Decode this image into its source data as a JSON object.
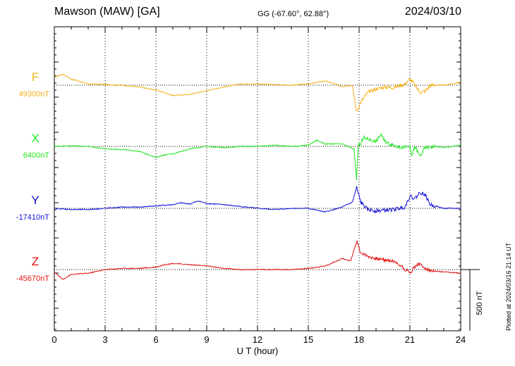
{
  "header": {
    "title": "Mawson (MAW)  [GA]",
    "coords": "GG (-67.60°,  62.88°)",
    "date": "2024/03/10"
  },
  "footer": {
    "plotted": "Plotted at 2024/03/16 21:14 UT"
  },
  "chart_data": {
    "type": "line",
    "xlabel": "U T (hour)",
    "xlim": [
      0,
      24
    ],
    "xticks": [
      0,
      3,
      6,
      9,
      12,
      15,
      18,
      21,
      24
    ],
    "grid": true,
    "scale_bar": {
      "label": "500 nT",
      "value": 500
    },
    "series": [
      {
        "name": "F",
        "baseline_label": "49300nT",
        "baseline": 49300,
        "color": "#f5b01a",
        "points": [
          [
            0,
            49365
          ],
          [
            0.5,
            49390
          ],
          [
            1,
            49350
          ],
          [
            1.5,
            49330
          ],
          [
            2,
            49310
          ],
          [
            3,
            49305
          ],
          [
            4,
            49300
          ],
          [
            5,
            49285
          ],
          [
            6,
            49260
          ],
          [
            6.5,
            49240
          ],
          [
            7,
            49215
          ],
          [
            8,
            49225
          ],
          [
            9,
            49255
          ],
          [
            10,
            49285
          ],
          [
            11,
            49310
          ],
          [
            12,
            49310
          ],
          [
            13,
            49305
          ],
          [
            14,
            49300
          ],
          [
            15,
            49310
          ],
          [
            16,
            49335
          ],
          [
            17,
            49290
          ],
          [
            17.6,
            49300
          ],
          [
            17.85,
            49080
          ],
          [
            18.1,
            49160
          ],
          [
            18.5,
            49240
          ],
          [
            19,
            49270
          ],
          [
            19.5,
            49285
          ],
          [
            20,
            49280
          ],
          [
            20.7,
            49310
          ],
          [
            21,
            49350
          ],
          [
            21.2,
            49320
          ],
          [
            21.6,
            49240
          ],
          [
            21.9,
            49250
          ],
          [
            22.2,
            49300
          ],
          [
            23,
            49300
          ],
          [
            24,
            49325
          ]
        ]
      },
      {
        "name": "X",
        "baseline_label": "6400nT",
        "baseline": 6400,
        "color": "#1fe51f",
        "points": [
          [
            0,
            6400
          ],
          [
            1,
            6405
          ],
          [
            2,
            6400
          ],
          [
            3,
            6380
          ],
          [
            4,
            6375
          ],
          [
            5,
            6360
          ],
          [
            6,
            6310
          ],
          [
            6.5,
            6330
          ],
          [
            7,
            6340
          ],
          [
            8,
            6380
          ],
          [
            9,
            6400
          ],
          [
            10,
            6390
          ],
          [
            11,
            6400
          ],
          [
            12,
            6400
          ],
          [
            13,
            6410
          ],
          [
            14,
            6400
          ],
          [
            15,
            6410
          ],
          [
            15.5,
            6450
          ],
          [
            16,
            6420
          ],
          [
            17,
            6420
          ],
          [
            17.7,
            6380
          ],
          [
            17.85,
            6130
          ],
          [
            17.95,
            6400
          ],
          [
            18.3,
            6470
          ],
          [
            19,
            6440
          ],
          [
            19.3,
            6500
          ],
          [
            19.5,
            6440
          ],
          [
            20,
            6410
          ],
          [
            20.5,
            6390
          ],
          [
            21,
            6400
          ],
          [
            21.1,
            6320
          ],
          [
            21.3,
            6400
          ],
          [
            21.6,
            6320
          ],
          [
            21.9,
            6390
          ],
          [
            22.5,
            6400
          ],
          [
            23,
            6390
          ],
          [
            24,
            6410
          ]
        ]
      },
      {
        "name": "Y",
        "baseline_label": "-17410nT",
        "baseline": -17410,
        "color": "#1010d8",
        "points": [
          [
            0,
            -17410
          ],
          [
            1,
            -17420
          ],
          [
            2,
            -17420
          ],
          [
            3,
            -17410
          ],
          [
            4,
            -17400
          ],
          [
            5,
            -17400
          ],
          [
            6,
            -17390
          ],
          [
            7,
            -17380
          ],
          [
            7.5,
            -17365
          ],
          [
            8,
            -17375
          ],
          [
            8.5,
            -17350
          ],
          [
            9,
            -17370
          ],
          [
            10,
            -17380
          ],
          [
            11,
            -17395
          ],
          [
            12,
            -17410
          ],
          [
            13,
            -17420
          ],
          [
            14,
            -17410
          ],
          [
            15,
            -17410
          ],
          [
            16,
            -17440
          ],
          [
            17,
            -17400
          ],
          [
            17.6,
            -17360
          ],
          [
            17.85,
            -17240
          ],
          [
            18.1,
            -17360
          ],
          [
            18.5,
            -17420
          ],
          [
            19,
            -17430
          ],
          [
            19.5,
            -17425
          ],
          [
            20,
            -17420
          ],
          [
            20.7,
            -17400
          ],
          [
            21,
            -17310
          ],
          [
            21.3,
            -17330
          ],
          [
            21.6,
            -17280
          ],
          [
            21.9,
            -17300
          ],
          [
            22.2,
            -17380
          ],
          [
            23,
            -17410
          ],
          [
            24,
            -17410
          ]
        ]
      },
      {
        "name": "Z",
        "baseline_label": "-45670nT",
        "baseline": -45670,
        "color": "#e01010",
        "points": [
          [
            0,
            -45690
          ],
          [
            0.5,
            -45750
          ],
          [
            1,
            -45710
          ],
          [
            2,
            -45700
          ],
          [
            3,
            -45670
          ],
          [
            4,
            -45660
          ],
          [
            5,
            -45660
          ],
          [
            6,
            -45650
          ],
          [
            6.5,
            -45630
          ],
          [
            7,
            -45620
          ],
          [
            8,
            -45630
          ],
          [
            9,
            -45640
          ],
          [
            10,
            -45660
          ],
          [
            11,
            -45670
          ],
          [
            12,
            -45670
          ],
          [
            13,
            -45670
          ],
          [
            14,
            -45670
          ],
          [
            15,
            -45660
          ],
          [
            16,
            -45640
          ],
          [
            17,
            -45580
          ],
          [
            17.5,
            -45600
          ],
          [
            17.85,
            -45440
          ],
          [
            18.1,
            -45530
          ],
          [
            18.5,
            -45560
          ],
          [
            19,
            -45580
          ],
          [
            19.5,
            -45590
          ],
          [
            20,
            -45600
          ],
          [
            20.5,
            -45640
          ],
          [
            21,
            -45700
          ],
          [
            21.2,
            -45660
          ],
          [
            21.5,
            -45620
          ],
          [
            21.8,
            -45650
          ],
          [
            22.2,
            -45680
          ],
          [
            23,
            -45690
          ],
          [
            24,
            -45700
          ]
        ]
      }
    ]
  }
}
